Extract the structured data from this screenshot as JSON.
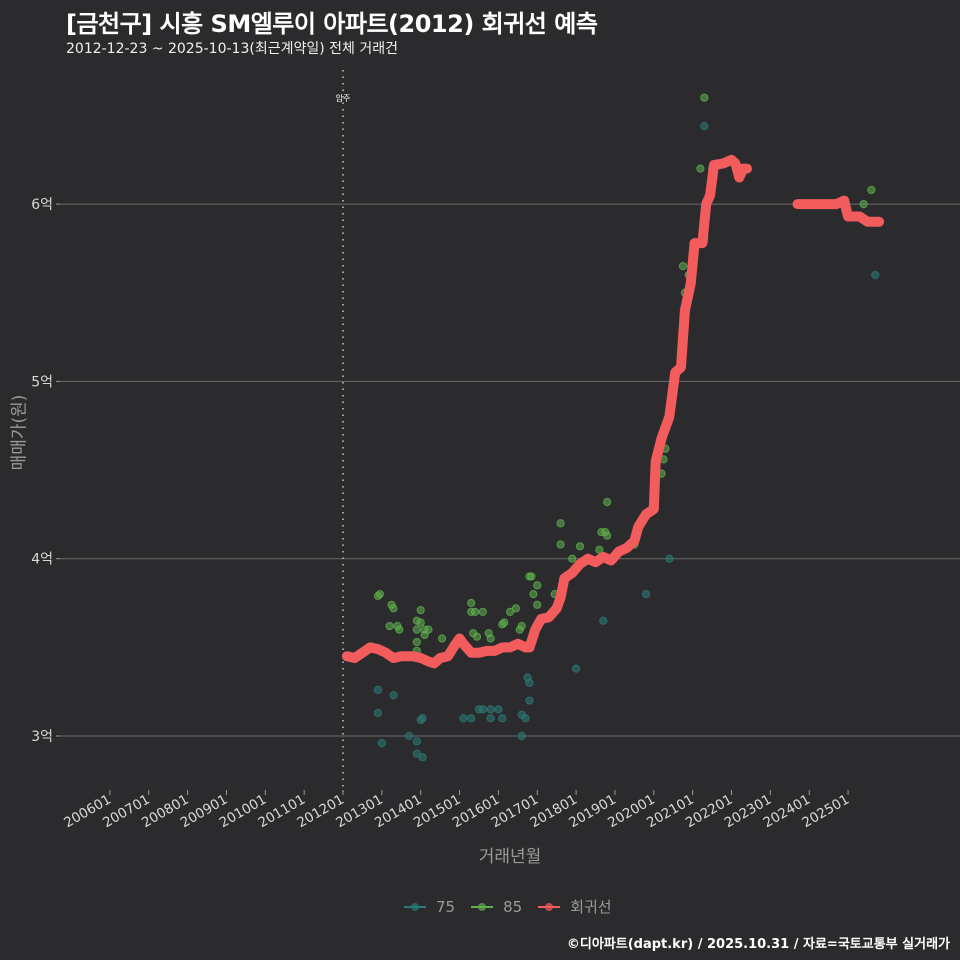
{
  "title": "[금천구] 시흥 SM엘루이 아파트(2012) 회귀선 예측",
  "subtitle": "2012-12-23 ~ 2025-10-13(최근계약일) 전체 거래건",
  "footer": "©디아파트(dapt.kr) / 2025.10.31 / 자료=국토교통부 실거래가",
  "colors": {
    "background": "#2b2b2d",
    "grid": "#6a6a6a",
    "series_75": "#2a7a78",
    "series_85": "#5fae4e",
    "regression": "#f25c5c"
  },
  "chart_data": {
    "type": "scatter",
    "title": "[금천구] 시흥 SM엘루이 아파트(2012) 회귀선 예측",
    "subtitle": "2012-12-23 ~ 2025-10-13(최근계약일) 전체 거래건",
    "xlabel": "거래년월",
    "ylabel": "매매가(원)",
    "x_tick_labels": [
      "200601",
      "200701",
      "200801",
      "200901",
      "201001",
      "201101",
      "201201",
      "201301",
      "201401",
      "201501",
      "201601",
      "201701",
      "201801",
      "201901",
      "202001",
      "202101",
      "202201",
      "202301",
      "202401",
      "202501"
    ],
    "y_tick_labels": [
      "3억",
      "4억",
      "5억",
      "6억"
    ],
    "y_ticks": [
      3,
      4,
      5,
      6
    ],
    "y_unit": "억",
    "ylim": [
      2.7,
      6.8
    ],
    "xlim": [
      2005.2,
      2026.0
    ],
    "grid": "horizontal",
    "annotation": {
      "x": 2012.0,
      "label": "입주",
      "style": "dotted-vertical"
    },
    "legend": [
      "75",
      "85",
      "회귀선"
    ],
    "legend_position": "bottom",
    "series": [
      {
        "name": "75",
        "type": "scatter",
        "points": [
          [
            2012.9,
            3.26
          ],
          [
            2012.9,
            3.13
          ],
          [
            2013.0,
            2.96
          ],
          [
            2013.3,
            3.23
          ],
          [
            2013.7,
            3.0
          ],
          [
            2013.9,
            2.97
          ],
          [
            2013.9,
            2.9
          ],
          [
            2014.0,
            3.09
          ],
          [
            2014.05,
            3.1
          ],
          [
            2014.05,
            2.88
          ],
          [
            2015.1,
            3.1
          ],
          [
            2015.3,
            3.1
          ],
          [
            2015.5,
            3.15
          ],
          [
            2015.6,
            3.15
          ],
          [
            2015.8,
            3.15
          ],
          [
            2015.8,
            3.1
          ],
          [
            2016.0,
            3.15
          ],
          [
            2016.1,
            3.1
          ],
          [
            2016.6,
            3.0
          ],
          [
            2016.6,
            3.12
          ],
          [
            2016.7,
            3.1
          ],
          [
            2016.75,
            3.33
          ],
          [
            2016.8,
            3.3
          ],
          [
            2016.8,
            3.2
          ],
          [
            2018.0,
            3.38
          ],
          [
            2018.7,
            3.65
          ],
          [
            2019.8,
            3.8
          ],
          [
            2020.4,
            4.0
          ],
          [
            2021.3,
            5.8
          ],
          [
            2021.3,
            6.44
          ],
          [
            2021.5,
            6.2
          ],
          [
            2025.7,
            5.6
          ]
        ]
      },
      {
        "name": "85",
        "type": "scatter",
        "points": [
          [
            2012.9,
            3.79
          ],
          [
            2012.95,
            3.8
          ],
          [
            2013.2,
            3.62
          ],
          [
            2013.25,
            3.74
          ],
          [
            2013.3,
            3.72
          ],
          [
            2013.4,
            3.62
          ],
          [
            2013.45,
            3.6
          ],
          [
            2013.9,
            3.65
          ],
          [
            2013.9,
            3.6
          ],
          [
            2013.9,
            3.53
          ],
          [
            2013.9,
            3.48
          ],
          [
            2014.0,
            3.71
          ],
          [
            2014.0,
            3.64
          ],
          [
            2014.1,
            3.6
          ],
          [
            2014.1,
            3.57
          ],
          [
            2014.2,
            3.6
          ],
          [
            2014.55,
            3.55
          ],
          [
            2015.3,
            3.75
          ],
          [
            2015.3,
            3.7
          ],
          [
            2015.4,
            3.7
          ],
          [
            2015.35,
            3.58
          ],
          [
            2015.45,
            3.56
          ],
          [
            2015.6,
            3.7
          ],
          [
            2015.75,
            3.58
          ],
          [
            2015.8,
            3.55
          ],
          [
            2016.1,
            3.63
          ],
          [
            2016.15,
            3.64
          ],
          [
            2016.3,
            3.7
          ],
          [
            2016.45,
            3.72
          ],
          [
            2016.55,
            3.6
          ],
          [
            2016.6,
            3.62
          ],
          [
            2016.8,
            3.9
          ],
          [
            2016.85,
            3.9
          ],
          [
            2016.9,
            3.8
          ],
          [
            2017.0,
            3.74
          ],
          [
            2017.0,
            3.85
          ],
          [
            2017.45,
            3.8
          ],
          [
            2017.6,
            4.2
          ],
          [
            2017.6,
            4.08
          ],
          [
            2017.9,
            4.0
          ],
          [
            2018.1,
            4.07
          ],
          [
            2018.6,
            4.05
          ],
          [
            2018.65,
            4.15
          ],
          [
            2018.75,
            4.15
          ],
          [
            2018.8,
            4.13
          ],
          [
            2018.8,
            4.32
          ],
          [
            2018.9,
            4.0
          ],
          [
            2019.5,
            4.08
          ],
          [
            2020.0,
            4.35
          ],
          [
            2020.2,
            4.48
          ],
          [
            2020.25,
            4.56
          ],
          [
            2020.3,
            4.62
          ],
          [
            2020.75,
            5.65
          ],
          [
            2020.8,
            5.5
          ],
          [
            2020.9,
            5.6
          ],
          [
            2021.2,
            6.2
          ],
          [
            2021.3,
            6.6
          ],
          [
            2025.4,
            6.0
          ],
          [
            2025.6,
            6.08
          ]
        ]
      },
      {
        "name": "회귀선",
        "type": "line",
        "points": [
          [
            2012.1,
            3.45
          ],
          [
            2012.3,
            3.44
          ],
          [
            2012.5,
            3.47
          ],
          [
            2012.7,
            3.5
          ],
          [
            2012.9,
            3.49
          ],
          [
            2013.1,
            3.47
          ],
          [
            2013.3,
            3.44
          ],
          [
            2013.5,
            3.45
          ],
          [
            2013.8,
            3.45
          ],
          [
            2014.0,
            3.44
          ],
          [
            2014.2,
            3.42
          ],
          [
            2014.35,
            3.41
          ],
          [
            2014.5,
            3.44
          ],
          [
            2014.7,
            3.45
          ],
          [
            2014.9,
            3.52
          ],
          [
            2015.0,
            3.55
          ],
          [
            2015.1,
            3.52
          ],
          [
            2015.3,
            3.47
          ],
          [
            2015.5,
            3.47
          ],
          [
            2015.7,
            3.48
          ],
          [
            2015.9,
            3.48
          ],
          [
            2016.1,
            3.5
          ],
          [
            2016.3,
            3.5
          ],
          [
            2016.5,
            3.52
          ],
          [
            2016.7,
            3.5
          ],
          [
            2016.8,
            3.5
          ],
          [
            2016.95,
            3.6
          ],
          [
            2017.1,
            3.66
          ],
          [
            2017.3,
            3.67
          ],
          [
            2017.5,
            3.72
          ],
          [
            2017.6,
            3.78
          ],
          [
            2017.7,
            3.89
          ],
          [
            2017.9,
            3.92
          ],
          [
            2018.1,
            3.97
          ],
          [
            2018.3,
            4.0
          ],
          [
            2018.5,
            3.98
          ],
          [
            2018.7,
            4.01
          ],
          [
            2018.9,
            3.99
          ],
          [
            2019.1,
            4.04
          ],
          [
            2019.3,
            4.06
          ],
          [
            2019.5,
            4.1
          ],
          [
            2019.6,
            4.18
          ],
          [
            2019.8,
            4.25
          ],
          [
            2020.0,
            4.28
          ],
          [
            2020.05,
            4.55
          ],
          [
            2020.2,
            4.68
          ],
          [
            2020.4,
            4.8
          ],
          [
            2020.55,
            5.05
          ],
          [
            2020.7,
            5.08
          ],
          [
            2020.8,
            5.4
          ],
          [
            2020.95,
            5.55
          ],
          [
            2021.05,
            5.78
          ],
          [
            2021.25,
            5.78
          ],
          [
            2021.35,
            6.0
          ],
          [
            2021.45,
            6.05
          ],
          [
            2021.55,
            6.22
          ],
          [
            2021.8,
            6.23
          ],
          [
            2022.0,
            6.25
          ],
          [
            2022.1,
            6.23
          ],
          [
            2022.2,
            6.15
          ],
          [
            2022.3,
            6.2
          ],
          [
            2022.4,
            6.2
          ],
          [
            2023.7,
            6.0
          ],
          [
            2024.2,
            6.0
          ],
          [
            2024.7,
            6.0
          ],
          [
            2024.9,
            6.02
          ],
          [
            2025.0,
            5.93
          ],
          [
            2025.3,
            5.93
          ],
          [
            2025.5,
            5.9
          ],
          [
            2025.8,
            5.9
          ]
        ]
      }
    ]
  },
  "legend": {
    "items": [
      {
        "label": "75",
        "color": "#2a7a78"
      },
      {
        "label": "85",
        "color": "#5fae4e"
      },
      {
        "label": "회귀선",
        "color": "#f25c5c"
      }
    ]
  }
}
